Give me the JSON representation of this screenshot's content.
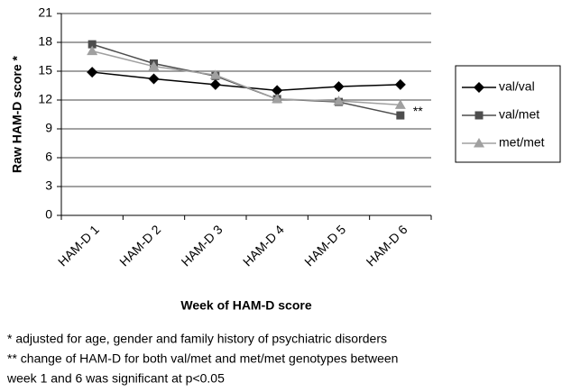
{
  "chart_data": {
    "type": "line",
    "categories": [
      "HAM-D 1",
      "HAM-D 2",
      "HAM-D 3",
      "HAM-D 4",
      "HAM-D 5",
      "HAM-D 6"
    ],
    "series": [
      {
        "name": "val/val",
        "color": "#000000",
        "marker": "diamond",
        "values": [
          14.9,
          14.2,
          13.6,
          13.0,
          13.4,
          13.6
        ]
      },
      {
        "name": "val/met",
        "color": "#4d4d4d",
        "marker": "square",
        "values": [
          17.8,
          15.8,
          14.5,
          12.1,
          11.8,
          10.4
        ]
      },
      {
        "name": "met/met",
        "color": "#a0a0a0",
        "marker": "triangle",
        "values": [
          17.1,
          15.5,
          14.6,
          12.1,
          11.9,
          11.5
        ]
      }
    ],
    "ylim": [
      0,
      21
    ],
    "yticks": [
      0,
      3,
      6,
      9,
      12,
      15,
      18,
      21
    ],
    "grid": true,
    "ylabel": "Raw HAM-D score *",
    "xlabel": "Week of HAM-D score",
    "annotation": "**",
    "notes": [
      "* adjusted for age, gender and family history of psychiatric disorders",
      "** change of HAM-D for both val/met and met/met genotypes between",
      "week 1 and 6 was significant at p<0.05"
    ]
  }
}
